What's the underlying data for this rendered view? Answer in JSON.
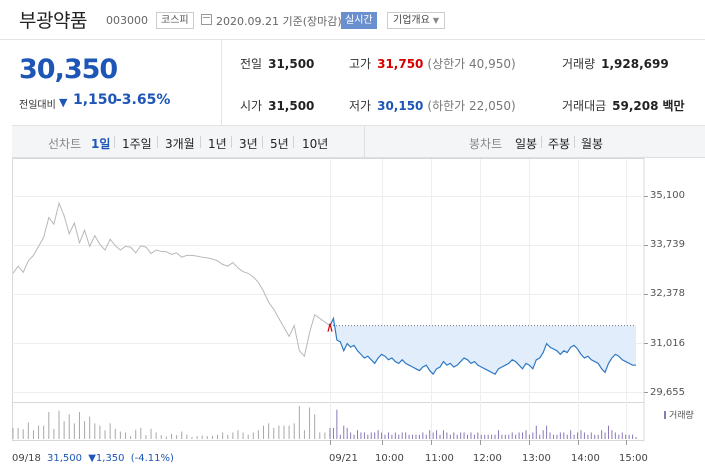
{
  "header": {
    "stock_name": "부광약품",
    "stock_code": "003000",
    "market": "코스피",
    "date": "2020.09.21",
    "date_suffix": "기준(장마감)",
    "realtime_label": "실시간",
    "corp_info_label": "기업개요"
  },
  "summary": {
    "price": "30,350",
    "change_label": "전일대비",
    "change_arrow": "▼",
    "change_value": "1,150",
    "change_percent": "-3.65%",
    "prev_close_label": "전일",
    "prev_close": "31,500",
    "open_label": "시가",
    "open": "31,500",
    "high_label": "고가",
    "high": "31,750",
    "upper_limit": "(상한가 40,950)",
    "low_label": "저가",
    "low": "30,150",
    "lower_limit": "(하한가 22,050)",
    "volume_label": "거래량",
    "volume": "1,928,699",
    "amount_label": "거래대금",
    "amount": "59,208",
    "amount_unit": "백만"
  },
  "tabs": {
    "line_caption": "선차트",
    "line_periods": [
      "1일",
      "1주일",
      "3개월",
      "1년",
      "3년",
      "5년",
      "10년"
    ],
    "selected_period": "1일",
    "candle_caption": "봉차트",
    "candle_periods": [
      "일봉",
      "주봉",
      "월봉"
    ]
  },
  "colors": {
    "down": "#1d56b6",
    "up": "#d60000",
    "prev_day_line": "#b8b8b8",
    "today_line": "#2f79c4",
    "today_fill": "#e1edfa",
    "volume_today": "#8a78b8",
    "volume_prev": "#a8a8a8"
  },
  "chart_data": {
    "type": "line",
    "ylim": [
      29655,
      35100
    ],
    "y_ticks": [
      "35,100",
      "33,739",
      "32,378",
      "31,016",
      "29,655"
    ],
    "baseline": 31500,
    "x_labels": [
      "09/21",
      "10:00",
      "11:00",
      "12:00",
      "13:00",
      "14:00",
      "15:00"
    ],
    "volume_label": "거래량",
    "prev_day": {
      "label": "09/18",
      "close": "31,500",
      "arrow": "▼",
      "change": "1,350",
      "change_pct": "(-4.11%)",
      "values": [
        32950,
        33150,
        32980,
        33300,
        33450,
        33700,
        33950,
        34500,
        34320,
        34900,
        34550,
        34050,
        34350,
        33800,
        34150,
        33700,
        34000,
        33750,
        33600,
        33900,
        33720,
        33600,
        33700,
        33680,
        33520,
        33720,
        33680,
        33500,
        33600,
        33560,
        33550,
        33480,
        33520,
        33400,
        33450,
        33450,
        33430,
        33400,
        33380,
        33350,
        33300,
        33200,
        33150,
        33250,
        33100,
        33000,
        32950,
        32850,
        32700,
        32450,
        32150,
        31950,
        31700,
        31450,
        31200,
        31500,
        30800,
        30650,
        31300,
        31800,
        31700,
        31600,
        31500
      ]
    },
    "today": {
      "values": [
        31500,
        31700,
        31100,
        31050,
        30800,
        31000,
        30900,
        30950,
        30800,
        30700,
        30600,
        30650,
        30550,
        30450,
        30600,
        30700,
        30650,
        30550,
        30600,
        30500,
        30450,
        30550,
        30450,
        30400,
        30350,
        30300,
        30250,
        30350,
        30400,
        30250,
        30150,
        30300,
        30350,
        30500,
        30400,
        30450,
        30350,
        30400,
        30500,
        30600,
        30550,
        30450,
        30500,
        30400,
        30350,
        30300,
        30250,
        30200,
        30150,
        30300,
        30350,
        30400,
        30450,
        30550,
        30500,
        30400,
        30300,
        30450,
        30400,
        30300,
        30550,
        30600,
        30750,
        31000,
        30900,
        30850,
        30800,
        30700,
        30800,
        30750,
        30900,
        30950,
        30850,
        30700,
        30600,
        30650,
        30550,
        30500,
        30450,
        30300,
        30200,
        30450,
        30600,
        30700,
        30650,
        30550,
        30500,
        30450,
        30400,
        30400
      ]
    }
  }
}
